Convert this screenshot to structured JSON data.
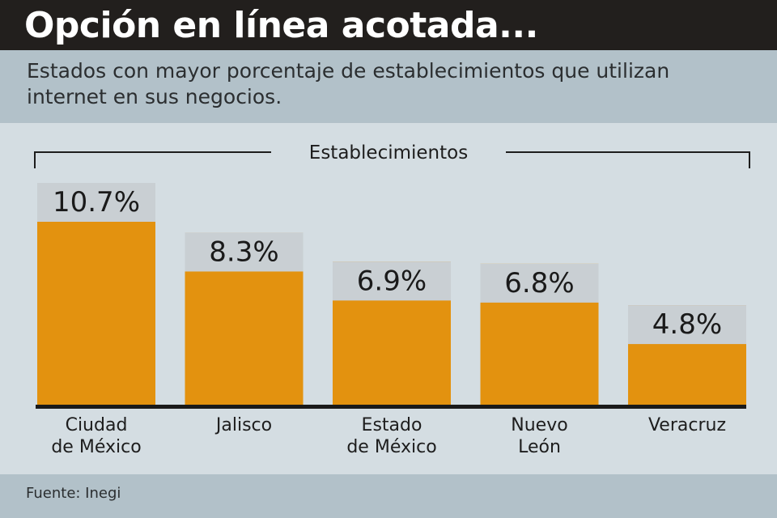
{
  "header": {
    "title": "Opción en línea acotada...",
    "subtitle": "Estados con mayor porcentaje de establecimientos que utilizan internet en sus negocios."
  },
  "footer": {
    "source": "Fuente: Inegi"
  },
  "colors": {
    "bar": "#e3920f",
    "bar_cap": "#c9cfd3",
    "title_bar": "#221f1d",
    "band": "#b2c1c9",
    "plot_bg": "#d4dde2",
    "baseline": "#1a1a1a"
  },
  "chart_data": {
    "type": "bar",
    "title": "Opción en línea acotada...",
    "subtitle": "Estados con mayor porcentaje de establecimientos que utilizan internet en sus negocios.",
    "group_label": "Establecimientos",
    "categories": [
      "Ciudad\nde México",
      "Jalisco",
      "Estado\nde México",
      "Nuevo\nLeón",
      "Veracruz"
    ],
    "values": [
      10.7,
      8.3,
      6.9,
      6.8,
      4.8
    ],
    "value_labels": [
      "10.7%",
      "8.3%",
      "6.9%",
      "6.8%",
      "4.8%"
    ],
    "xlabel": "",
    "ylabel": "",
    "ylim": [
      0,
      10.7
    ],
    "grid": false,
    "legend": "none",
    "source": "Fuente: Inegi"
  }
}
